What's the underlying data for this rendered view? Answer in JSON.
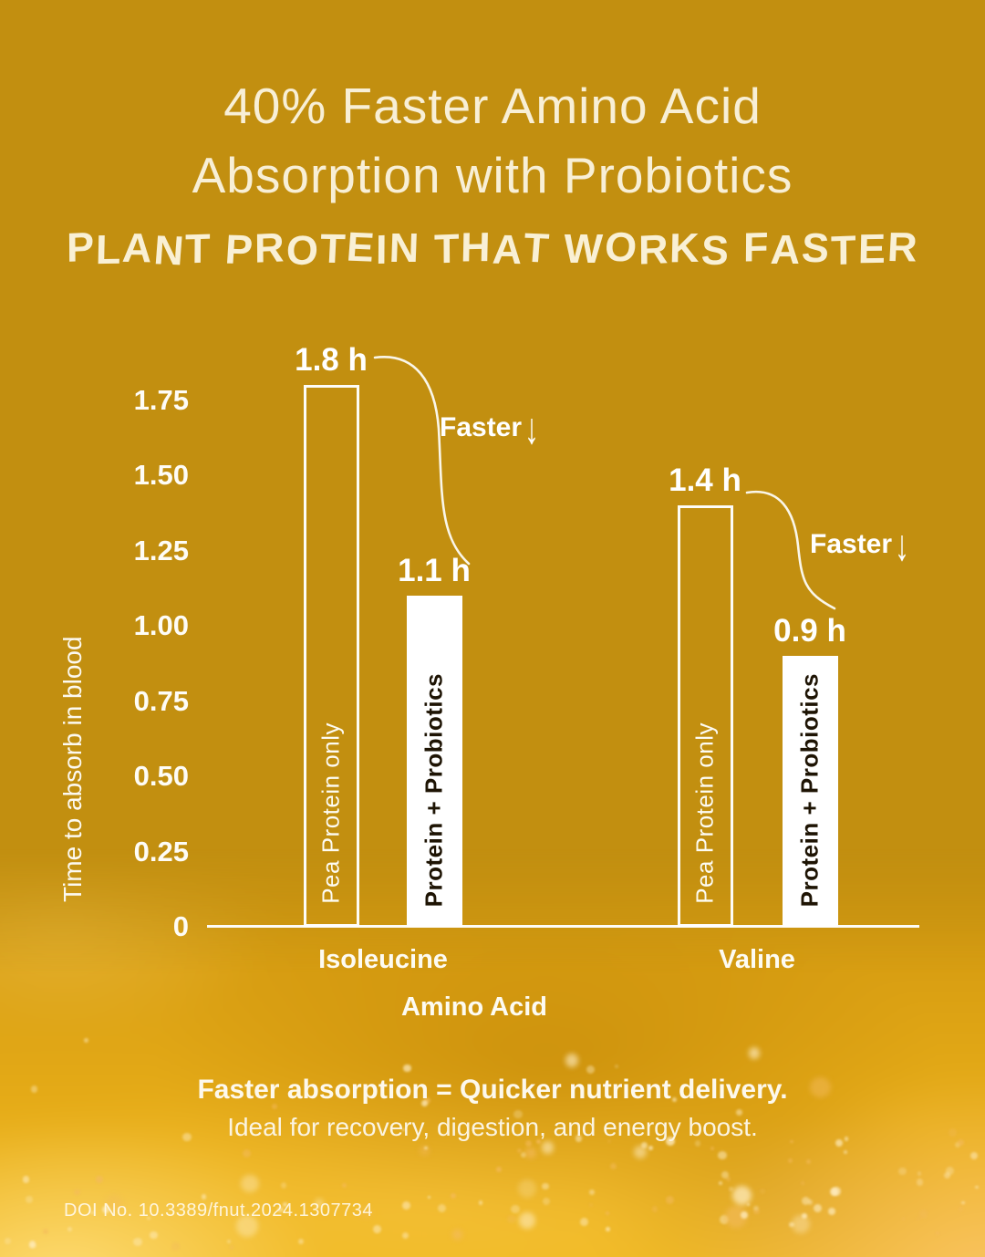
{
  "header": {
    "title_line1": "40% Faster Amino Acid",
    "title_line2": "Absorption with Probiotics",
    "subtitle": "PLANT PROTEIN THAT WORKS FASTER"
  },
  "chart_data": {
    "type": "bar",
    "title": "",
    "xlabel": "Amino Acid",
    "ylabel": "Time to absorb in blood",
    "unit": "hours",
    "ylim": [
      0,
      1.9
    ],
    "grid": false,
    "legend_position": "none",
    "categories": [
      "Isoleucine",
      "Valine"
    ],
    "yticks": [
      {
        "value": 0,
        "label": "0"
      },
      {
        "value": 0.25,
        "label": "0.25"
      },
      {
        "value": 0.5,
        "label": "0.50"
      },
      {
        "value": 0.75,
        "label": "0.75"
      },
      {
        "value": 1,
        "label": "1.00"
      },
      {
        "value": 1.25,
        "label": "1.25"
      },
      {
        "value": 1.5,
        "label": "1.50"
      },
      {
        "value": 1.75,
        "label": "1.75"
      }
    ],
    "series": [
      {
        "name": "Pea Protein only",
        "style": "outline",
        "values": [
          1.8,
          1.4
        ],
        "value_labels": [
          "1.8 h",
          "1.4 h"
        ]
      },
      {
        "name": "Protein + Probiotics",
        "style": "solid",
        "values": [
          1.1,
          0.9
        ],
        "value_labels": [
          "1.1 h",
          "0.9 h"
        ]
      }
    ],
    "annotations": [
      {
        "text": "Faster",
        "arrow": "↓",
        "target": "Isoleucine"
      },
      {
        "text": "Faster",
        "arrow": "↓",
        "target": "Valine"
      }
    ]
  },
  "caption": {
    "headline": "Faster absorption = Quicker nutrient delivery.",
    "subline": "Ideal for recovery, digestion, and energy boost."
  },
  "footer": {
    "doi": "DOI No. 10.3389/fnut.2024.1307734"
  },
  "colors": {
    "background": "#C28F10",
    "title_cream": "#F8EFD6",
    "chart_white": "#FFFFFF",
    "bar_fill": "#FFFFFF",
    "bar_text_dark": "#1E1404",
    "photo_gold": "#E9AC15"
  }
}
